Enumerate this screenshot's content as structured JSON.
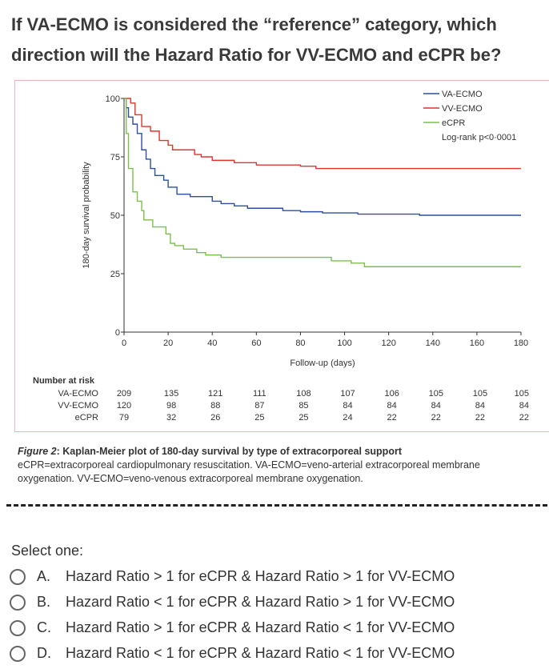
{
  "question": "If VA-ECMO is considered the “reference” category, which direction will the Hazard Ratio for VV-ECMO and eCPR be?",
  "select_label": "Select one:",
  "options": [
    {
      "letter": "A.",
      "text": "Hazard Ratio > 1 for eCPR & Hazard Ratio > 1 for VV-ECMO"
    },
    {
      "letter": "B.",
      "text": "Hazard Ratio < 1 for eCPR & Hazard Ratio > 1 for VV-ECMO"
    },
    {
      "letter": "C.",
      "text": "Hazard Ratio > 1 for eCPR & Hazard Ratio < 1 for VV-ECMO"
    },
    {
      "letter": "D.",
      "text": "Hazard Ratio < 1 for eCPR & Hazard Ratio < 1 for VV-ECMO"
    }
  ],
  "caption": {
    "title_italic": "Figure 2",
    "title": ": Kaplan-Meier plot of 180-day survival by type of extracorporeal support",
    "body": "eCPR=extracorporeal cardiopulmonary resuscitation. VA-ECMO=veno-arterial extracorporeal membrane oxygenation. VV-ECMO=veno-venous extracorporeal membrane oxygenation."
  },
  "chart_data": {
    "type": "line",
    "step": true,
    "xlabel": "Follow-up (days)",
    "ylabel": "180-day survival probability",
    "xlim": [
      0,
      180
    ],
    "ylim": [
      0,
      100
    ],
    "xticks": [
      0,
      20,
      40,
      60,
      80,
      100,
      120,
      140,
      160,
      180
    ],
    "yticks": [
      0,
      25,
      50,
      75,
      100
    ],
    "grid": false,
    "legend_position": "top-right",
    "annotation": "Log-rank p<0·0001",
    "series": [
      {
        "name": "VA-ECMO",
        "color": "#2c4fa0",
        "points": [
          [
            0,
            100
          ],
          [
            1,
            96
          ],
          [
            2,
            92
          ],
          [
            4,
            89
          ],
          [
            6,
            85
          ],
          [
            8,
            78
          ],
          [
            10,
            74
          ],
          [
            12,
            70
          ],
          [
            14,
            67
          ],
          [
            18,
            65
          ],
          [
            20,
            62
          ],
          [
            24,
            59
          ],
          [
            30,
            58
          ],
          [
            40,
            56
          ],
          [
            44,
            55
          ],
          [
            50,
            54
          ],
          [
            56,
            53
          ],
          [
            72,
            52
          ],
          [
            80,
            51.5
          ],
          [
            90,
            51
          ],
          [
            106,
            50.5
          ],
          [
            134,
            50
          ],
          [
            180,
            50
          ]
        ]
      },
      {
        "name": "VV-ECMO",
        "color": "#e0342c",
        "points": [
          [
            0,
            100
          ],
          [
            3,
            98
          ],
          [
            5,
            93
          ],
          [
            8,
            88
          ],
          [
            12,
            86
          ],
          [
            16,
            82
          ],
          [
            20,
            80
          ],
          [
            22,
            78
          ],
          [
            32,
            76
          ],
          [
            35,
            75
          ],
          [
            40,
            73.5
          ],
          [
            50,
            72.5
          ],
          [
            60,
            71.5
          ],
          [
            80,
            71
          ],
          [
            87,
            70
          ],
          [
            180,
            70
          ]
        ]
      },
      {
        "name": "eCPR",
        "color": "#7cc04a",
        "points": [
          [
            0,
            100
          ],
          [
            1,
            85
          ],
          [
            2,
            70
          ],
          [
            4,
            60
          ],
          [
            6,
            56
          ],
          [
            8,
            52
          ],
          [
            9,
            48
          ],
          [
            13,
            45
          ],
          [
            19,
            42
          ],
          [
            21,
            38
          ],
          [
            23,
            37
          ],
          [
            27,
            35.5
          ],
          [
            33,
            34
          ],
          [
            37,
            33
          ],
          [
            44,
            32
          ],
          [
            94,
            30.5
          ],
          [
            103,
            29.5
          ],
          [
            109,
            28
          ],
          [
            180,
            28
          ]
        ]
      }
    ],
    "risk_table": {
      "title": "Number at risk",
      "rows": [
        {
          "name": "VA-ECMO",
          "values": [
            209,
            135,
            121,
            111,
            108,
            107,
            106,
            105,
            105,
            105
          ]
        },
        {
          "name": "VV-ECMO",
          "values": [
            120,
            98,
            88,
            87,
            85,
            84,
            84,
            84,
            84,
            84
          ]
        },
        {
          "name": "eCPR",
          "values": [
            79,
            32,
            26,
            25,
            25,
            24,
            22,
            22,
            22,
            22
          ]
        }
      ]
    }
  }
}
